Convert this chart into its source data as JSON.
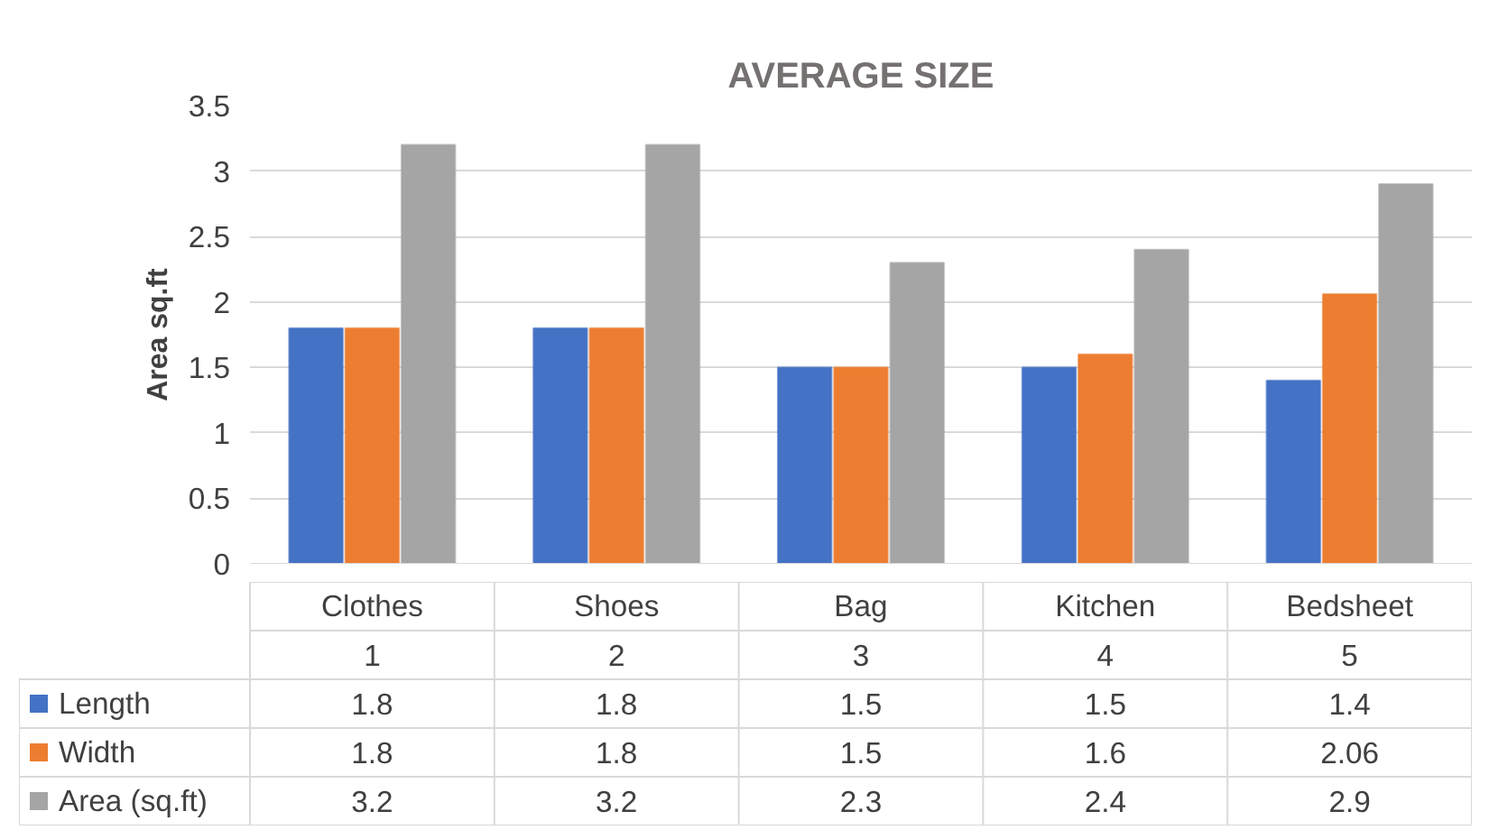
{
  "chart_data": {
    "type": "bar",
    "title": "AVERAGE SIZE",
    "ylabel": "Area sq.ft",
    "categories": [
      "Clothes",
      "Shoes",
      "Bag",
      "Kitchen",
      "Bedsheet"
    ],
    "annotations": [
      "1",
      "2",
      "3",
      "4",
      "5"
    ],
    "series": [
      {
        "name": "Length",
        "color": "#4472c4",
        "values": [
          1.8,
          1.8,
          1.5,
          1.5,
          1.4
        ]
      },
      {
        "name": "Width",
        "color": "#ed7d31",
        "values": [
          1.8,
          1.8,
          1.5,
          1.6,
          2.06
        ]
      },
      {
        "name": "Area (sq.ft)",
        "color": "#a5a5a5",
        "values": [
          3.2,
          3.2,
          2.3,
          2.4,
          2.9
        ]
      }
    ],
    "ylim": [
      0,
      3.5
    ],
    "yticks": [
      0,
      0.5,
      1,
      1.5,
      2,
      2.5,
      3,
      3.5
    ],
    "grid": "y",
    "legend": "bottom",
    "data_labels": true
  }
}
